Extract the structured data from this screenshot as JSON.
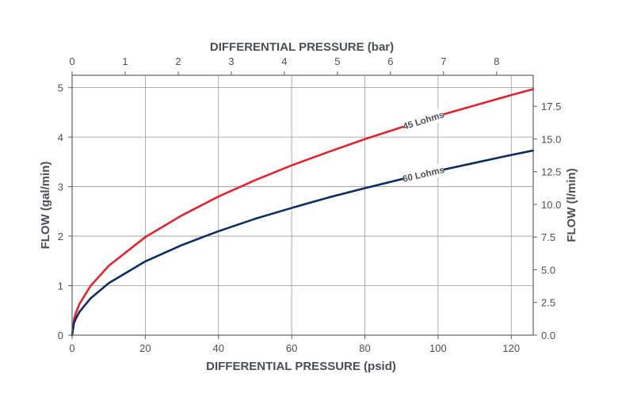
{
  "chart_data": {
    "type": "line",
    "x_bottom": {
      "label": "DIFFERENTIAL PRESSURE (psid)",
      "range": [
        0,
        126
      ],
      "ticks": [
        0,
        20,
        40,
        60,
        80,
        100,
        120
      ]
    },
    "x_top": {
      "label": "DIFFERENTIAL PRESSURE (bar)",
      "range": [
        0,
        8.69
      ],
      "ticks": [
        0,
        1,
        2,
        3,
        4,
        5,
        6,
        7,
        8
      ]
    },
    "y_left": {
      "label": "FLOW (gal/min)",
      "range": [
        0,
        5.25
      ],
      "ticks": [
        0,
        1,
        2,
        3,
        4,
        5
      ]
    },
    "y_right": {
      "label": "FLOW (l/min)",
      "range": [
        0,
        19.87
      ],
      "ticks": [
        "0.0",
        "2.5",
        "5.0",
        "7.5",
        "10.0",
        "12.5",
        "15.0",
        "17.5"
      ]
    },
    "grid": true,
    "series": [
      {
        "name": "45 Lohms",
        "color": "#e0242f",
        "x": [
          0,
          0.5,
          1,
          2,
          5,
          10,
          20,
          30,
          40,
          50,
          60,
          70,
          80,
          90,
          100,
          110,
          120,
          126
        ],
        "y": [
          0,
          0.31,
          0.44,
          0.63,
          0.99,
          1.4,
          1.98,
          2.42,
          2.8,
          3.13,
          3.43,
          3.7,
          3.96,
          4.2,
          4.43,
          4.64,
          4.85,
          4.97
        ]
      },
      {
        "name": "60 Lohms",
        "color": "#0d2d5e",
        "x": [
          0,
          0.5,
          1,
          2,
          5,
          10,
          20,
          30,
          40,
          50,
          60,
          70,
          80,
          90,
          100,
          110,
          120,
          126
        ],
        "y": [
          0,
          0.24,
          0.33,
          0.47,
          0.74,
          1.05,
          1.49,
          1.82,
          2.1,
          2.35,
          2.57,
          2.78,
          2.97,
          3.15,
          3.32,
          3.48,
          3.64,
          3.73
        ]
      }
    ],
    "annotations": [
      {
        "text": "45 Lohms",
        "series": 0,
        "at_x": 96
      },
      {
        "text": "60 Lohms",
        "series": 1,
        "at_x": 96
      }
    ]
  }
}
